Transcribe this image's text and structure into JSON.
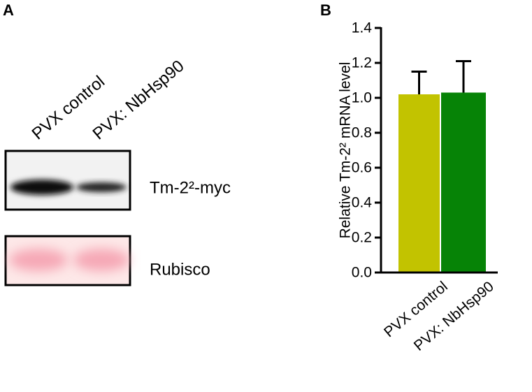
{
  "panel_a": {
    "label": "A",
    "lanes": [
      "PVX control",
      "PVX: NbHsp90"
    ],
    "blots": [
      "Tm-2²-myc",
      "Rubisco"
    ]
  },
  "chart_data": {
    "type": "bar",
    "label": "B",
    "ylabel": "Relative Tm-2² mRNA level",
    "categories": [
      "PVX control",
      "PVX: NbHsp90"
    ],
    "values": [
      1.02,
      1.03
    ],
    "errors": [
      0.13,
      0.18
    ],
    "colors": [
      "#c2c300",
      "#068306"
    ],
    "ylim": [
      0,
      1.4
    ],
    "yticks": [
      {
        "value": 0,
        "label": "0.0"
      },
      0.2,
      0.4,
      0.6,
      0.8,
      {
        "value": 1,
        "label": "1.0"
      },
      1.2,
      1.4
    ]
  }
}
